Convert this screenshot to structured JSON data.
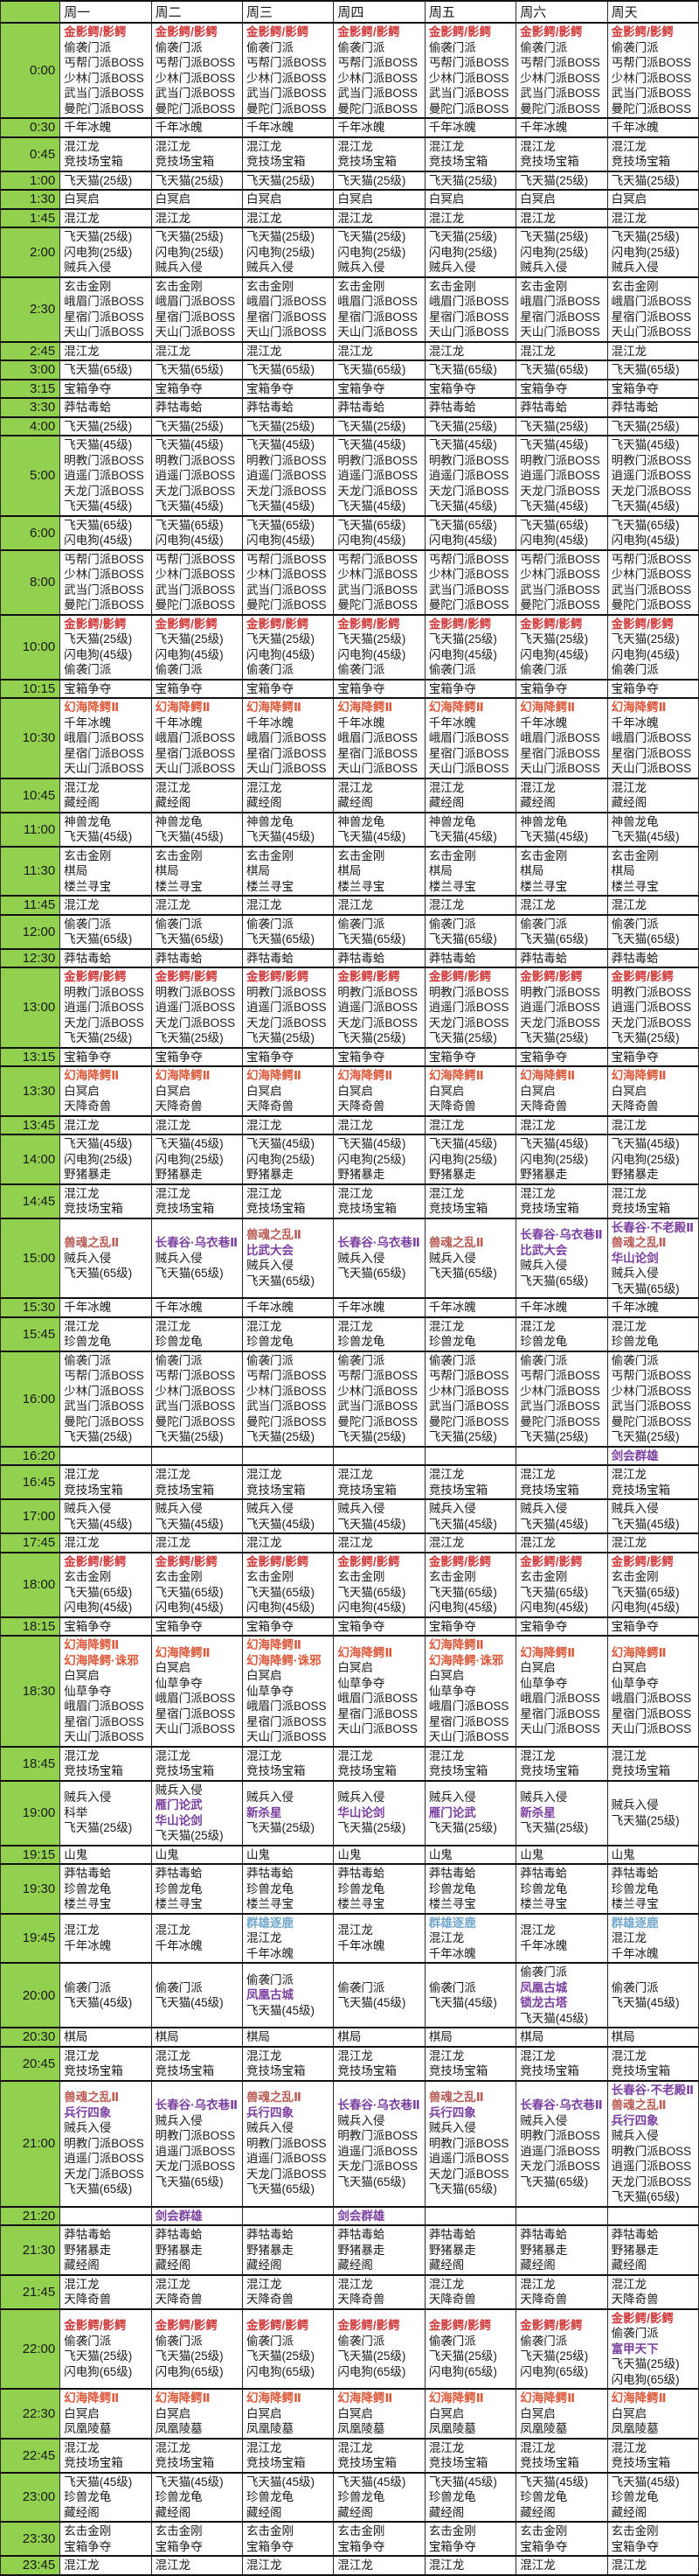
{
  "table": {
    "corner_label": "",
    "days": [
      "周一",
      "周二",
      "周三",
      "周四",
      "周五",
      "周六",
      "周天"
    ],
    "colors": {
      "k": "#1a1a1a",
      "r": "#d03a3a",
      "o": "#dc5a3c",
      "m": "#b85c55",
      "p": "#7b3fa0",
      "b": "#72a7cc",
      "time_column_bg": "#92d050"
    },
    "rows": [
      {
        "t": "0:00",
        "a": [
          [
            "金影鳄/影鳄",
            "r"
          ],
          "偷袭门派",
          "丐帮门派BOSS",
          "少林门派BOSS",
          "武当门派BOSS",
          "曼陀门派BOSS"
        ]
      },
      {
        "t": "0:30",
        "a": [
          "千年冰魄"
        ]
      },
      {
        "t": "0:45",
        "a": [
          "混江龙",
          "竞技场宝箱"
        ]
      },
      {
        "t": "1:00",
        "a": [
          "飞天猫(25级)"
        ]
      },
      {
        "t": "1:30",
        "a": [
          "白冥启"
        ]
      },
      {
        "t": "1:45",
        "a": [
          "混江龙"
        ]
      },
      {
        "t": "2:00",
        "a": [
          "飞天猫(25级)",
          "闪电狗(25级)",
          "贼兵入侵"
        ]
      },
      {
        "t": "2:30",
        "a": [
          "玄击金刚",
          "峨眉门派BOSS",
          "星宿门派BOSS",
          "天山门派BOSS"
        ]
      },
      {
        "t": "2:45",
        "a": [
          "混江龙"
        ]
      },
      {
        "t": "3:00",
        "a": [
          "飞天猫(65级)"
        ]
      },
      {
        "t": "3:15",
        "a": [
          "宝箱争夺"
        ]
      },
      {
        "t": "3:30",
        "a": [
          "莽牯毒蛤"
        ]
      },
      {
        "t": "4:00",
        "a": [
          "飞天猫(25级)"
        ]
      },
      {
        "t": "5:00",
        "a": [
          "飞天猫(45级)",
          "明教门派BOSS",
          "逍遥门派BOSS",
          "天龙门派BOSS",
          "飞天猫(45级)"
        ]
      },
      {
        "t": "6:00",
        "a": [
          "飞天猫(65级)",
          "闪电狗(45级)"
        ]
      },
      {
        "t": "8:00",
        "a": [
          "丐帮门派BOSS",
          "少林门派BOSS",
          "武当门派BOSS",
          "曼陀门派BOSS"
        ]
      },
      {
        "t": "10:00",
        "a": [
          [
            "金影鳄/影鳄",
            "r"
          ],
          "飞天猫(25级)",
          "闪电狗(45级)",
          "偷袭门派"
        ]
      },
      {
        "t": "10:15",
        "a": [
          "宝箱争夺"
        ]
      },
      {
        "t": "10:30",
        "a": [
          [
            "幻海降鳄Ⅱ",
            "o"
          ],
          "千年冰魄",
          "峨眉门派BOSS",
          "星宿门派BOSS",
          "天山门派BOSS"
        ]
      },
      {
        "t": "10:45",
        "a": [
          "混江龙",
          "藏经阁"
        ]
      },
      {
        "t": "11:00",
        "a": [
          "神兽龙龟",
          "飞天猫(45级)"
        ]
      },
      {
        "t": "11:30",
        "a": [
          "玄击金刚",
          "棋局",
          "楼兰寻宝"
        ]
      },
      {
        "t": "11:45",
        "a": [
          "混江龙"
        ]
      },
      {
        "t": "12:00",
        "a": [
          "偷袭门派",
          "飞天猫(65级)"
        ]
      },
      {
        "t": "12:30",
        "a": [
          "莽牯毒蛤"
        ]
      },
      {
        "t": "13:00",
        "a": [
          [
            "金影鳄/影鳄",
            "r"
          ],
          "明教门派BOSS",
          "逍遥门派BOSS",
          "天龙门派BOSS",
          "飞天猫(25级)"
        ]
      },
      {
        "t": "13:15",
        "a": [
          "宝箱争夺"
        ]
      },
      {
        "t": "13:30",
        "a": [
          [
            "幻海降鳄Ⅱ",
            "o"
          ],
          "白冥启",
          "天降奇兽"
        ]
      },
      {
        "t": "13:45",
        "a": [
          "混江龙"
        ]
      },
      {
        "t": "14:00",
        "a": [
          "飞天猫(45级)",
          "闪电狗(25级)",
          "野猪暴走"
        ]
      },
      {
        "t": "14:45",
        "a": [
          "混江龙",
          "竞技场宝箱"
        ]
      },
      {
        "t": "15:00",
        "c": [
          [
            [
              "兽魂之乱Ⅱ",
              "m"
            ],
            "贼兵入侵",
            "飞天猫(65级)"
          ],
          [
            [
              "长春谷·乌衣巷Ⅱ",
              "p"
            ],
            "贼兵入侵",
            "飞天猫(65级)"
          ],
          [
            [
              "兽魂之乱Ⅱ",
              "m"
            ],
            [
              "比武大会",
              "p"
            ],
            "贼兵入侵",
            "飞天猫(65级)"
          ],
          [
            [
              "长春谷·乌衣巷Ⅱ",
              "p"
            ],
            "贼兵入侵",
            "飞天猫(65级)"
          ],
          [
            [
              "兽魂之乱Ⅱ",
              "m"
            ],
            "贼兵入侵",
            "飞天猫(65级)"
          ],
          [
            [
              "长春谷·乌衣巷Ⅱ",
              "p"
            ],
            [
              "比武大会",
              "p"
            ],
            "贼兵入侵",
            "飞天猫(65级)"
          ],
          [
            [
              "长春谷·不老殿Ⅱ",
              "p"
            ],
            [
              "兽魂之乱Ⅱ",
              "m"
            ],
            [
              "华山论剑",
              "p"
            ],
            "贼兵入侵",
            "飞天猫(65级)"
          ]
        ]
      },
      {
        "t": "15:30",
        "a": [
          "千年冰魄"
        ]
      },
      {
        "t": "15:45",
        "a": [
          "混江龙",
          "珍兽龙龟"
        ]
      },
      {
        "t": "16:00",
        "a": [
          "偷袭门派",
          "丐帮门派BOSS",
          "少林门派BOSS",
          "武当门派BOSS",
          "曼陀门派BOSS",
          "飞天猫(25级)"
        ]
      },
      {
        "t": "16:20",
        "c": [
          [],
          [],
          [],
          [],
          [],
          [],
          [
            [
              "剑会群雄",
              "p"
            ]
          ]
        ]
      },
      {
        "t": "16:45",
        "a": [
          "混江龙",
          "竞技场宝箱"
        ]
      },
      {
        "t": "17:00",
        "a": [
          "贼兵入侵",
          "飞天猫(45级)"
        ]
      },
      {
        "t": "17:45",
        "a": [
          "混江龙"
        ]
      },
      {
        "t": "18:00",
        "a": [
          [
            "金影鳄/影鳄",
            "r"
          ],
          "玄击金刚",
          "飞天猫(65级)",
          "闪电狗(45级)"
        ]
      },
      {
        "t": "18:15",
        "a": [
          "宝箱争夺"
        ]
      },
      {
        "t": "18:30",
        "c": [
          [
            [
              "幻海降鳄Ⅱ",
              "o"
            ],
            [
              "幻海降鳄·诛邪",
              "o"
            ],
            "白冥启",
            "仙草争夺",
            "峨眉门派BOSS",
            "星宿门派BOSS",
            "天山门派BOSS"
          ],
          [
            [
              "幻海降鳄Ⅱ",
              "o"
            ],
            "白冥启",
            "仙草争夺",
            "峨眉门派BOSS",
            "星宿门派BOSS",
            "天山门派BOSS"
          ],
          [
            [
              "幻海降鳄Ⅱ",
              "o"
            ],
            [
              "幻海降鳄·诛邪",
              "o"
            ],
            "白冥启",
            "仙草争夺",
            "峨眉门派BOSS",
            "星宿门派BOSS",
            "天山门派BOSS"
          ],
          [
            [
              "幻海降鳄Ⅱ",
              "o"
            ],
            "白冥启",
            "仙草争夺",
            "峨眉门派BOSS",
            "星宿门派BOSS",
            "天山门派BOSS"
          ],
          [
            [
              "幻海降鳄Ⅱ",
              "o"
            ],
            [
              "幻海降鳄·诛邪",
              "o"
            ],
            "白冥启",
            "仙草争夺",
            "峨眉门派BOSS",
            "星宿门派BOSS",
            "天山门派BOSS"
          ],
          [
            [
              "幻海降鳄Ⅱ",
              "o"
            ],
            "白冥启",
            "仙草争夺",
            "峨眉门派BOSS",
            "星宿门派BOSS",
            "天山门派BOSS"
          ],
          [
            [
              "幻海降鳄Ⅱ",
              "o"
            ],
            "白冥启",
            "仙草争夺",
            "峨眉门派BOSS",
            "星宿门派BOSS",
            "天山门派BOSS"
          ]
        ]
      },
      {
        "t": "18:45",
        "a": [
          "混江龙",
          "竞技场宝箱"
        ]
      },
      {
        "t": "19:00",
        "c": [
          [
            "贼兵入侵",
            "科举",
            "飞天猫(25级)"
          ],
          [
            "贼兵入侵",
            [
              "雁门论武",
              "p"
            ],
            [
              "华山论剑",
              "p"
            ],
            "飞天猫(25级)"
          ],
          [
            "贼兵入侵",
            [
              "新杀星",
              "p"
            ],
            "飞天猫(25级)"
          ],
          [
            "贼兵入侵",
            [
              "华山论剑",
              "p"
            ],
            "飞天猫(25级)"
          ],
          [
            "贼兵入侵",
            [
              "雁门论武",
              "p"
            ],
            "飞天猫(25级)"
          ],
          [
            "贼兵入侵",
            [
              "新杀星",
              "p"
            ],
            "飞天猫(25级)"
          ],
          [
            "贼兵入侵",
            "飞天猫(25级)"
          ]
        ]
      },
      {
        "t": "19:15",
        "a": [
          "山鬼"
        ]
      },
      {
        "t": "19:30",
        "a": [
          "莽牯毒蛤",
          "珍兽龙龟",
          "楼兰寻宝"
        ]
      },
      {
        "t": "19:45",
        "c": [
          [
            "混江龙",
            "千年冰魄"
          ],
          [
            "混江龙",
            "千年冰魄"
          ],
          [
            [
              "群雄逐鹿",
              "b"
            ],
            "混江龙",
            "千年冰魄"
          ],
          [
            "混江龙",
            "千年冰魄"
          ],
          [
            [
              "群雄逐鹿",
              "b"
            ],
            "混江龙",
            "千年冰魄"
          ],
          [
            "混江龙",
            "千年冰魄"
          ],
          [
            [
              "群雄逐鹿",
              "b"
            ],
            "混江龙",
            "千年冰魄"
          ]
        ]
      },
      {
        "t": "20:00",
        "c": [
          [
            "偷袭门派",
            "飞天猫(45级)"
          ],
          [
            "偷袭门派",
            "飞天猫(45级)"
          ],
          [
            "偷袭门派",
            [
              "凤凰古城",
              "p"
            ],
            "飞天猫(45级)"
          ],
          [
            "偷袭门派",
            "飞天猫(45级)"
          ],
          [
            "偷袭门派",
            "飞天猫(45级)"
          ],
          [
            "偷袭门派",
            [
              "凤凰古城",
              "p"
            ],
            [
              "锁龙古塔",
              "p"
            ],
            "飞天猫(45级)"
          ],
          [
            "偷袭门派",
            "飞天猫(45级)"
          ]
        ]
      },
      {
        "t": "20:30",
        "a": [
          "棋局"
        ]
      },
      {
        "t": "20:45",
        "a": [
          "混江龙",
          "竞技场宝箱"
        ]
      },
      {
        "t": "21:00",
        "c": [
          [
            [
              "兽魂之乱Ⅱ",
              "m"
            ],
            [
              "兵行四象",
              "p"
            ],
            "贼兵入侵",
            "明教门派BOSS",
            "逍遥门派BOSS",
            "天龙门派BOSS",
            "飞天猫(65级)"
          ],
          [
            [
              "长春谷·乌衣巷Ⅱ",
              "p"
            ],
            "贼兵入侵",
            "明教门派BOSS",
            "逍遥门派BOSS",
            "天龙门派BOSS",
            "飞天猫(65级)"
          ],
          [
            [
              "兽魂之乱Ⅱ",
              "m"
            ],
            [
              "兵行四象",
              "p"
            ],
            "贼兵入侵",
            "明教门派BOSS",
            "逍遥门派BOSS",
            "天龙门派BOSS",
            "飞天猫(65级)"
          ],
          [
            [
              "长春谷·乌衣巷Ⅱ",
              "p"
            ],
            "贼兵入侵",
            "明教门派BOSS",
            "逍遥门派BOSS",
            "天龙门派BOSS",
            "飞天猫(65级)"
          ],
          [
            [
              "兽魂之乱Ⅱ",
              "m"
            ],
            [
              "兵行四象",
              "p"
            ],
            "贼兵入侵",
            "明教门派BOSS",
            "逍遥门派BOSS",
            "天龙门派BOSS",
            "飞天猫(65级)"
          ],
          [
            [
              "长春谷·乌衣巷Ⅱ",
              "p"
            ],
            "贼兵入侵",
            "明教门派BOSS",
            "逍遥门派BOSS",
            "天龙门派BOSS",
            "飞天猫(65级)"
          ],
          [
            [
              "长春谷·不老殿Ⅱ",
              "p"
            ],
            [
              "兽魂之乱Ⅱ",
              "m"
            ],
            [
              "兵行四象",
              "p"
            ],
            "贼兵入侵",
            "明教门派BOSS",
            "逍遥门派BOSS",
            "天龙门派BOSS",
            "飞天猫(65级)"
          ]
        ]
      },
      {
        "t": "21:20",
        "c": [
          [],
          [
            [
              "剑会群雄",
              "p"
            ]
          ],
          [],
          [
            [
              "剑会群雄",
              "p"
            ]
          ],
          [],
          [],
          []
        ]
      },
      {
        "t": "21:30",
        "a": [
          "莽牯毒蛤",
          "野猪暴走",
          "藏经阁"
        ]
      },
      {
        "t": "21:45",
        "a": [
          "混江龙",
          "天降奇兽"
        ]
      },
      {
        "t": "22:00",
        "c": [
          [
            [
              "金影鳄/影鳄",
              "r"
            ],
            "偷袭门派",
            "飞天猫(25级)",
            "闪电狗(65级)"
          ],
          [
            [
              "金影鳄/影鳄",
              "r"
            ],
            "偷袭门派",
            "飞天猫(25级)",
            "闪电狗(65级)"
          ],
          [
            [
              "金影鳄/影鳄",
              "r"
            ],
            "偷袭门派",
            "飞天猫(25级)",
            "闪电狗(65级)"
          ],
          [
            [
              "金影鳄/影鳄",
              "r"
            ],
            "偷袭门派",
            "飞天猫(25级)",
            "闪电狗(65级)"
          ],
          [
            [
              "金影鳄/影鳄",
              "r"
            ],
            "偷袭门派",
            "飞天猫(25级)",
            "闪电狗(65级)"
          ],
          [
            [
              "金影鳄/影鳄",
              "r"
            ],
            "偷袭门派",
            "飞天猫(25级)",
            "闪电狗(65级)"
          ],
          [
            [
              "金影鳄/影鳄",
              "r"
            ],
            "偷袭门派",
            [
              "富甲天下",
              "p"
            ],
            "飞天猫(25级)",
            "闪电狗(65级)"
          ]
        ]
      },
      {
        "t": "22:30",
        "a": [
          [
            "幻海降鳄Ⅱ",
            "o"
          ],
          "白冥启",
          "凤凰陵墓"
        ]
      },
      {
        "t": "22:45",
        "a": [
          "混江龙",
          "竞技场宝箱"
        ]
      },
      {
        "t": "23:00",
        "a": [
          "飞天猫(45级)",
          "珍兽龙龟",
          "藏经阁"
        ]
      },
      {
        "t": "23:30",
        "a": [
          "玄击金刚",
          "宝箱争夺"
        ]
      },
      {
        "t": "23:45",
        "a": [
          "混江龙"
        ]
      }
    ]
  }
}
